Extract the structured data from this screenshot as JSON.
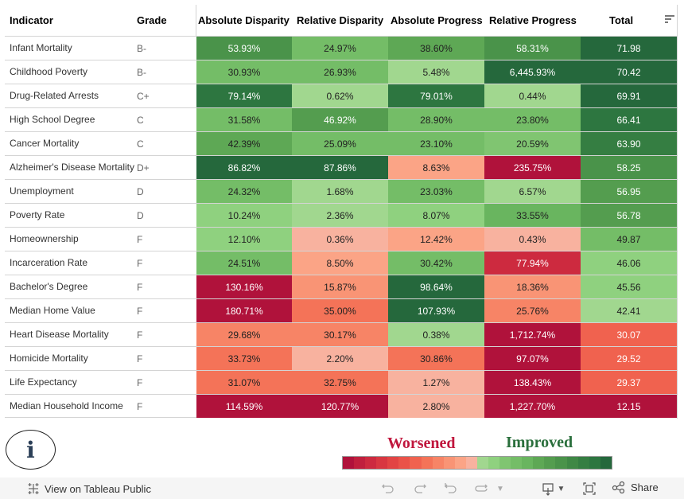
{
  "columns": {
    "indicator": "Indicator",
    "grade": "Grade",
    "absolute_disparity": "Absolute Disparity",
    "relative_disparity": "Relative Disparity",
    "absolute_progress": "Absolute Progress",
    "relative_progress": "Relative Progress",
    "total": "Total"
  },
  "palette": {
    "worse": [
      "#b0123b",
      "#c01f3d",
      "#cd2a3f",
      "#d83741",
      "#e24444",
      "#ea5249",
      "#f0624f",
      "#f47358",
      "#f78466",
      "#f99475",
      "#fba486",
      "#f8b29f"
    ],
    "better": [
      "#a1d78f",
      "#8fd17f",
      "#80c571",
      "#74bd67",
      "#69b55f",
      "#5ea855",
      "#549d4f",
      "#4a934a",
      "#3f8845",
      "#357e42",
      "#2d7640",
      "#25683c"
    ]
  },
  "rows": [
    {
      "indicator": "Infant Mortality",
      "grade": "B-",
      "cells": [
        {
          "value": "53.93%",
          "color": "#4a934a",
          "dark": true
        },
        {
          "value": "24.97%",
          "color": "#74bd67",
          "dark": false
        },
        {
          "value": "38.60%",
          "color": "#5ea855",
          "dark": false
        },
        {
          "value": "58.31%",
          "color": "#4a934a",
          "dark": true
        },
        {
          "value": "71.98",
          "color": "#25683c",
          "dark": true
        }
      ]
    },
    {
      "indicator": "Childhood Poverty",
      "grade": "B-",
      "cells": [
        {
          "value": "30.93%",
          "color": "#74bd67",
          "dark": false
        },
        {
          "value": "26.93%",
          "color": "#74bd67",
          "dark": false
        },
        {
          "value": "5.48%",
          "color": "#a1d78f",
          "dark": false
        },
        {
          "value": "6,445.93%",
          "color": "#25683c",
          "dark": true
        },
        {
          "value": "70.42",
          "color": "#25683c",
          "dark": true
        }
      ]
    },
    {
      "indicator": "Drug-Related Arrests",
      "grade": "C+",
      "cells": [
        {
          "value": "79.14%",
          "color": "#2d7640",
          "dark": true
        },
        {
          "value": "0.62%",
          "color": "#a1d78f",
          "dark": false
        },
        {
          "value": "79.01%",
          "color": "#2d7640",
          "dark": true
        },
        {
          "value": "0.44%",
          "color": "#a1d78f",
          "dark": false
        },
        {
          "value": "69.91",
          "color": "#25683c",
          "dark": true
        }
      ]
    },
    {
      "indicator": "High School Degree",
      "grade": "C",
      "cells": [
        {
          "value": "31.58%",
          "color": "#74bd67",
          "dark": false
        },
        {
          "value": "46.92%",
          "color": "#549d4f",
          "dark": true
        },
        {
          "value": "28.90%",
          "color": "#74bd67",
          "dark": false
        },
        {
          "value": "23.80%",
          "color": "#74bd67",
          "dark": false
        },
        {
          "value": "66.41",
          "color": "#2d7640",
          "dark": true
        }
      ]
    },
    {
      "indicator": "Cancer Mortality",
      "grade": "C",
      "cells": [
        {
          "value": "42.39%",
          "color": "#5ea855",
          "dark": false
        },
        {
          "value": "25.09%",
          "color": "#74bd67",
          "dark": false
        },
        {
          "value": "23.10%",
          "color": "#74bd67",
          "dark": false
        },
        {
          "value": "20.59%",
          "color": "#80c571",
          "dark": false
        },
        {
          "value": "63.90",
          "color": "#357e42",
          "dark": true
        }
      ]
    },
    {
      "indicator": "Alzheimer's Disease Mortality",
      "grade": "D+",
      "cells": [
        {
          "value": "86.82%",
          "color": "#25683c",
          "dark": true
        },
        {
          "value": "87.86%",
          "color": "#25683c",
          "dark": true
        },
        {
          "value": "8.63%",
          "color": "#fba486",
          "dark": false
        },
        {
          "value": "235.75%",
          "color": "#b0123b",
          "dark": true
        },
        {
          "value": "58.25",
          "color": "#4a934a",
          "dark": true
        }
      ]
    },
    {
      "indicator": "Unemployment",
      "grade": "D",
      "cells": [
        {
          "value": "24.32%",
          "color": "#74bd67",
          "dark": false
        },
        {
          "value": "1.68%",
          "color": "#a1d78f",
          "dark": false
        },
        {
          "value": "23.03%",
          "color": "#74bd67",
          "dark": false
        },
        {
          "value": "6.57%",
          "color": "#a1d78f",
          "dark": false
        },
        {
          "value": "56.95",
          "color": "#549d4f",
          "dark": true
        }
      ]
    },
    {
      "indicator": "Poverty Rate",
      "grade": "D",
      "cells": [
        {
          "value": "10.24%",
          "color": "#8fd17f",
          "dark": false
        },
        {
          "value": "2.36%",
          "color": "#a1d78f",
          "dark": false
        },
        {
          "value": "8.07%",
          "color": "#8fd17f",
          "dark": false
        },
        {
          "value": "33.55%",
          "color": "#69b55f",
          "dark": false
        },
        {
          "value": "56.78",
          "color": "#549d4f",
          "dark": true
        }
      ]
    },
    {
      "indicator": "Homeownership",
      "grade": "F",
      "cells": [
        {
          "value": "12.10%",
          "color": "#8fd17f",
          "dark": false
        },
        {
          "value": "0.36%",
          "color": "#f8b29f",
          "dark": false
        },
        {
          "value": "12.42%",
          "color": "#fba486",
          "dark": false
        },
        {
          "value": "0.43%",
          "color": "#f8b29f",
          "dark": false
        },
        {
          "value": "49.87",
          "color": "#74bd67",
          "dark": false
        }
      ]
    },
    {
      "indicator": "Incarceration Rate",
      "grade": "F",
      "cells": [
        {
          "value": "24.51%",
          "color": "#74bd67",
          "dark": false
        },
        {
          "value": "8.50%",
          "color": "#fba486",
          "dark": false
        },
        {
          "value": "30.42%",
          "color": "#74bd67",
          "dark": false
        },
        {
          "value": "77.94%",
          "color": "#cd2a3f",
          "dark": true
        },
        {
          "value": "46.06",
          "color": "#8fd17f",
          "dark": false
        }
      ]
    },
    {
      "indicator": "Bachelor's Degree",
      "grade": "F",
      "cells": [
        {
          "value": "130.16%",
          "color": "#b0123b",
          "dark": true
        },
        {
          "value": "15.87%",
          "color": "#f99475",
          "dark": false
        },
        {
          "value": "98.64%",
          "color": "#25683c",
          "dark": true
        },
        {
          "value": "18.36%",
          "color": "#f99475",
          "dark": false
        },
        {
          "value": "45.56",
          "color": "#8fd17f",
          "dark": false
        }
      ]
    },
    {
      "indicator": "Median Home Value",
      "grade": "F",
      "cells": [
        {
          "value": "180.71%",
          "color": "#b0123b",
          "dark": true
        },
        {
          "value": "35.00%",
          "color": "#f47358",
          "dark": false
        },
        {
          "value": "107.93%",
          "color": "#25683c",
          "dark": true
        },
        {
          "value": "25.76%",
          "color": "#f78466",
          "dark": false
        },
        {
          "value": "42.41",
          "color": "#a1d78f",
          "dark": false
        }
      ]
    },
    {
      "indicator": "Heart Disease Mortality",
      "grade": "F",
      "cells": [
        {
          "value": "29.68%",
          "color": "#f78466",
          "dark": false
        },
        {
          "value": "30.17%",
          "color": "#f78466",
          "dark": false
        },
        {
          "value": "0.38%",
          "color": "#a1d78f",
          "dark": false
        },
        {
          "value": "1,712.74%",
          "color": "#b0123b",
          "dark": true
        },
        {
          "value": "30.07",
          "color": "#f0624f",
          "dark": true
        }
      ]
    },
    {
      "indicator": "Homicide Mortality",
      "grade": "F",
      "cells": [
        {
          "value": "33.73%",
          "color": "#f47358",
          "dark": false
        },
        {
          "value": "2.20%",
          "color": "#f8b29f",
          "dark": false
        },
        {
          "value": "30.86%",
          "color": "#f47358",
          "dark": false
        },
        {
          "value": "97.07%",
          "color": "#b0123b",
          "dark": true
        },
        {
          "value": "29.52",
          "color": "#f0624f",
          "dark": true
        }
      ]
    },
    {
      "indicator": "Life Expectancy",
      "grade": "F",
      "cells": [
        {
          "value": "31.07%",
          "color": "#f47358",
          "dark": false
        },
        {
          "value": "32.75%",
          "color": "#f47358",
          "dark": false
        },
        {
          "value": "1.27%",
          "color": "#f8b29f",
          "dark": false
        },
        {
          "value": "138.43%",
          "color": "#b0123b",
          "dark": true
        },
        {
          "value": "29.37",
          "color": "#f0624f",
          "dark": true
        }
      ]
    },
    {
      "indicator": "Median Household Income",
      "grade": "F",
      "cells": [
        {
          "value": "114.59%",
          "color": "#b0123b",
          "dark": true
        },
        {
          "value": "120.77%",
          "color": "#b0123b",
          "dark": true
        },
        {
          "value": "2.80%",
          "color": "#f8b29f",
          "dark": false
        },
        {
          "value": "1,227.70%",
          "color": "#b0123b",
          "dark": true
        },
        {
          "value": "12.15",
          "color": "#b0123b",
          "dark": true
        }
      ]
    }
  ],
  "legend": {
    "worsened_label": "Worsened",
    "improved_label": "Improved",
    "worsened_color": "#c0163d",
    "improved_color": "#2a6f3c"
  },
  "info_icon": "info-icon",
  "toolbar": {
    "view_label": "View on Tableau Public",
    "share_label": "Share",
    "icons": [
      "tableau-logo-icon",
      "undo-icon",
      "redo-icon",
      "revert-icon",
      "refresh-icon",
      "dropdown-icon",
      "download-icon",
      "fullscreen-icon",
      "share-icon"
    ]
  }
}
